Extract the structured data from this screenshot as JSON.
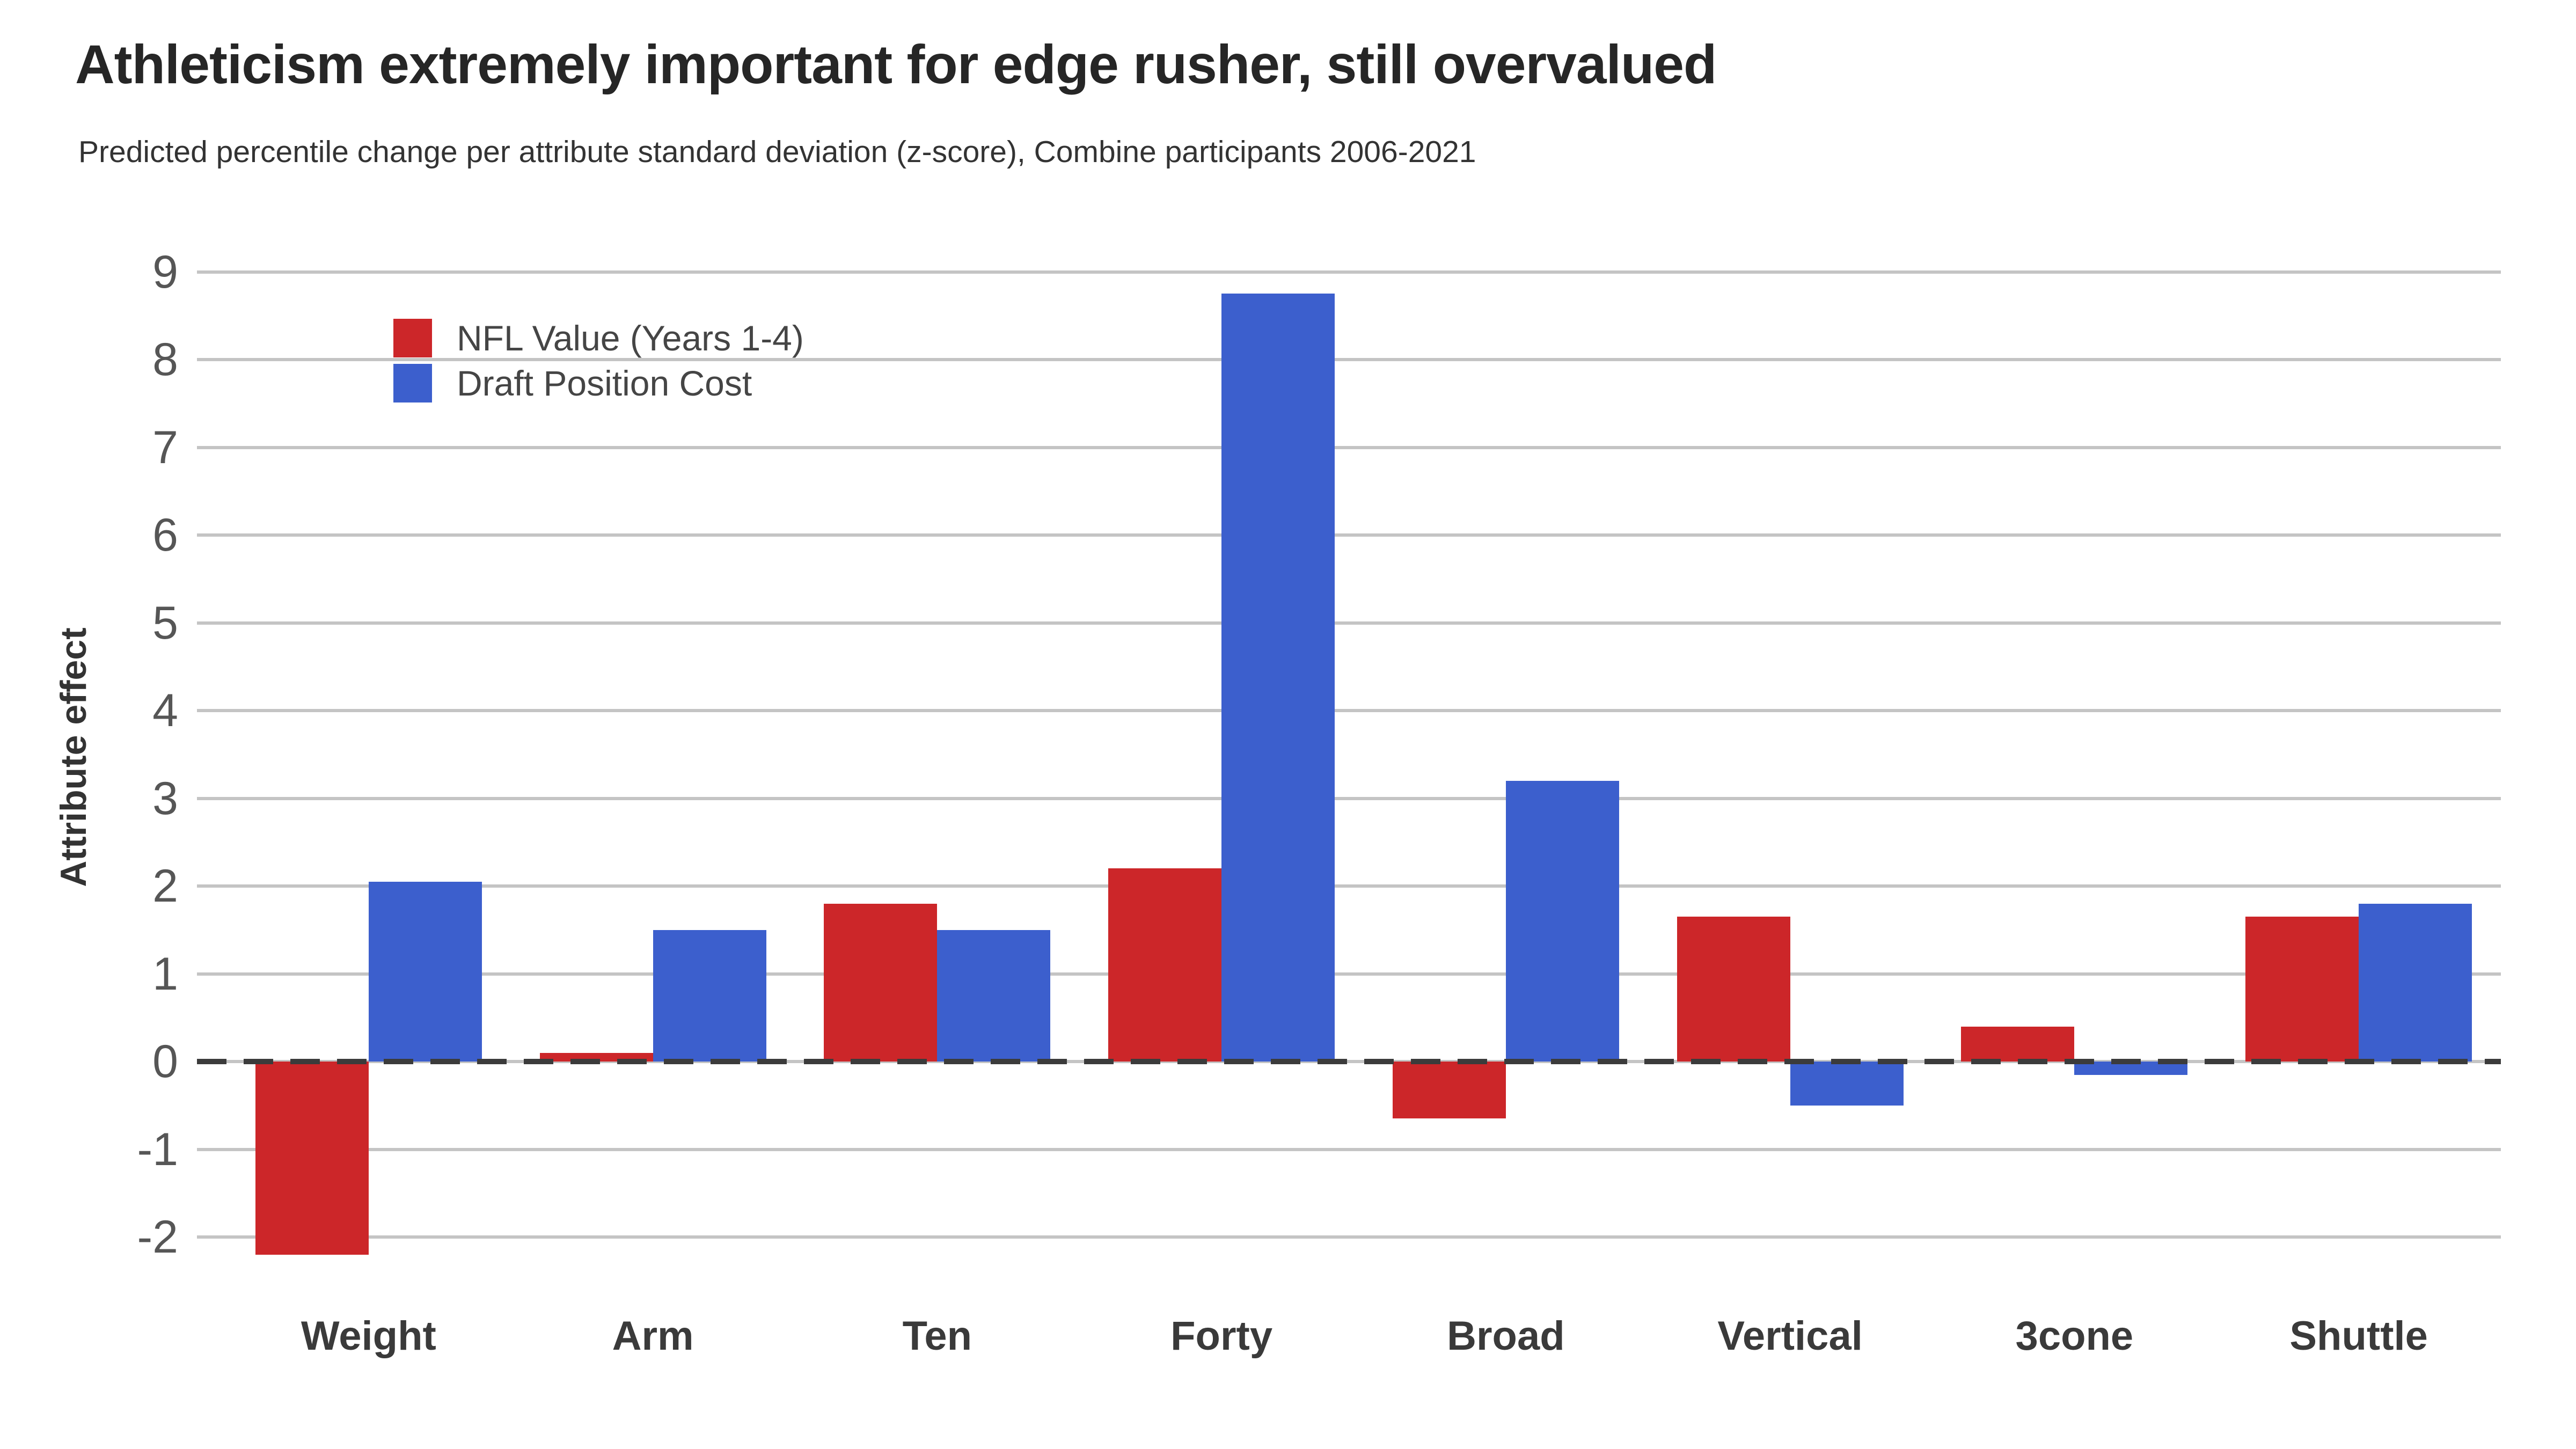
{
  "header": {
    "title": "Athleticism extremely important for edge rusher, still overvalued",
    "subtitle": "Predicted percentile change per attribute standard deviation (z-score), Combine participants 2006-2021"
  },
  "legend": {
    "position": "top-left-inside",
    "items": [
      {
        "key": "nfl-value",
        "label": "NFL Value (Years 1-4)",
        "color": "#cc2629"
      },
      {
        "key": "draft-position-cost",
        "label": "Draft Position Cost",
        "color": "#3c5fcd"
      }
    ]
  },
  "y_axis": {
    "label": "Attribute effect",
    "ticks": [
      9,
      8,
      7,
      6,
      5,
      4,
      3,
      2,
      1,
      0,
      -1,
      -2
    ]
  },
  "chart_data": {
    "type": "bar",
    "title": "Athleticism extremely important for edge rusher, still overvalued",
    "subtitle": "Predicted percentile change per attribute standard deviation (z-score), Combine participants 2006-2021",
    "categories": [
      "Weight",
      "Arm",
      "Ten",
      "Forty",
      "Broad",
      "Vertical",
      "3cone",
      "Shuttle"
    ],
    "series": [
      {
        "key": "nfl-value",
        "name": "NFL Value (Years 1-4)",
        "color": "#cc2629",
        "values": [
          -2.2,
          0.1,
          1.8,
          2.2,
          -0.65,
          1.65,
          0.4,
          1.65
        ]
      },
      {
        "key": "draft-position-cost",
        "name": "Draft Position Cost",
        "color": "#3c5fcd",
        "values": [
          2.05,
          1.5,
          1.5,
          8.75,
          3.2,
          -0.5,
          -0.15,
          1.8
        ]
      }
    ],
    "xlabel": "",
    "ylabel": "Attribute effect",
    "ylim": [
      -2.55,
      9.4
    ],
    "yticks": [
      9,
      8,
      7,
      6,
      5,
      4,
      3,
      2,
      1,
      0,
      -1,
      -2
    ],
    "grid": true,
    "zero_line": "dashed",
    "legend_position": "top-left-inside"
  },
  "colors": {
    "background": "#ffffff",
    "grid": "#c4c4c4",
    "zero_line": "#3b3b3b",
    "title_text": "#262626",
    "subtitle_text": "#333333",
    "tick_text": "#565656",
    "x_label_text": "#3a3a3a",
    "legend_text": "#454545"
  }
}
